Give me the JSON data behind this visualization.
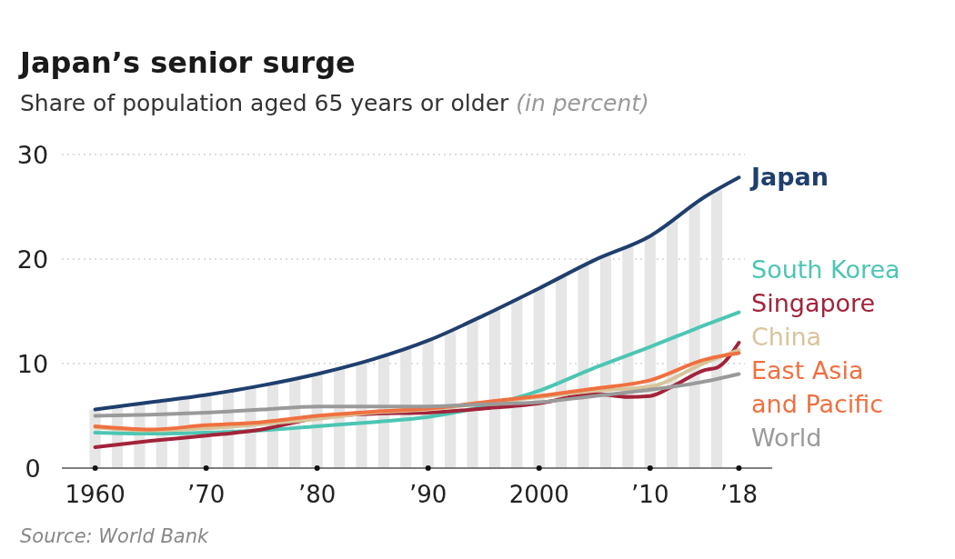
{
  "chart_data": {
    "type": "line",
    "title": "Japan’s senior surge",
    "subtitle": "Share of population aged 65 years or older (in percent)",
    "annotations": [
      "Source: World Bank"
    ],
    "xlim": [
      1957,
      2021
    ],
    "xticks": [
      {
        "value": 1960,
        "label": "1960"
      },
      {
        "value": 1970,
        "label": "’70"
      },
      {
        "value": 1980,
        "label": "’80"
      },
      {
        "value": 1990,
        "label": "’90"
      },
      {
        "value": 2000,
        "label": "2000"
      },
      {
        "value": 2010,
        "label": "’10"
      },
      {
        "value": 2018,
        "label": "’18"
      }
    ],
    "ylim": [
      0,
      30
    ],
    "yticks": [
      0,
      10,
      20,
      30
    ],
    "grid": "y",
    "legend": false,
    "series": [
      {
        "type": "bar",
        "color": "#e6e6e6",
        "x": [
          1960,
          1962,
          1964,
          1966,
          1968,
          1970,
          1972,
          1974,
          1976,
          1978,
          1980,
          1982,
          1984,
          1986,
          1988,
          1990,
          1992,
          1994,
          1996,
          1998,
          2000,
          2002,
          2004,
          2006,
          2008,
          2010,
          2012,
          2014,
          2016
        ],
        "values": [
          5.6,
          5.8,
          6.1,
          6.4,
          6.7,
          7.0,
          7.3,
          7.7,
          8.1,
          8.6,
          9.0,
          9.5,
          10.1,
          10.8,
          11.4,
          12.2,
          13.1,
          14.1,
          15.1,
          16.2,
          17.2,
          18.3,
          19.4,
          20.4,
          21.3,
          22.2,
          23.6,
          25.2,
          26.6
        ]
      },
      {
        "name": "Japan",
        "color": "#1f3f6e",
        "x": [
          1960,
          1965,
          1970,
          1975,
          1980,
          1985,
          1990,
          1995,
          2000,
          2005,
          2010,
          2015,
          2018
        ],
        "values": [
          5.6,
          6.3,
          7.0,
          7.9,
          9.0,
          10.4,
          12.2,
          14.6,
          17.2,
          19.9,
          22.2,
          26.0,
          27.8
        ]
      },
      {
        "name": "South Korea",
        "color": "#4cc6b4",
        "x": [
          1960,
          1965,
          1970,
          1975,
          1980,
          1985,
          1990,
          1995,
          2000,
          2005,
          2010,
          2015,
          2018
        ],
        "values": [
          3.4,
          3.3,
          3.4,
          3.6,
          4.0,
          4.4,
          4.9,
          5.9,
          7.4,
          9.6,
          11.6,
          13.7,
          14.9
        ]
      },
      {
        "name": "Singapore",
        "color": "#a3233a",
        "x": [
          1960,
          1965,
          1970,
          1975,
          1980,
          1985,
          1990,
          1995,
          2000,
          2005,
          2008,
          2010,
          2012,
          2015,
          2016,
          2018
        ],
        "values": [
          2.0,
          2.6,
          3.1,
          3.7,
          4.8,
          5.2,
          5.3,
          5.7,
          6.2,
          7.1,
          6.8,
          6.9,
          7.8,
          9.4,
          9.6,
          12.0
        ]
      },
      {
        "name": "China",
        "color": "#d8c49a",
        "x": [
          1960,
          1965,
          1970,
          1975,
          1980,
          1985,
          1990,
          1995,
          2000,
          2005,
          2010,
          2015,
          2018
        ],
        "values": [
          3.9,
          3.6,
          3.8,
          4.2,
          4.7,
          5.3,
          5.6,
          6.2,
          6.8,
          7.4,
          7.8,
          10.1,
          11.3
        ]
      },
      {
        "name": "East Asia and Pacific",
        "color": "#f07040",
        "x": [
          1960,
          1965,
          1970,
          1975,
          1980,
          1985,
          1990,
          1995,
          2000,
          2005,
          2010,
          2015,
          2018
        ],
        "values": [
          4.0,
          3.7,
          4.1,
          4.4,
          5.0,
          5.4,
          5.7,
          6.3,
          6.9,
          7.6,
          8.4,
          10.4,
          11.0
        ]
      },
      {
        "name": "World",
        "color": "#9a9a9a",
        "x": [
          1960,
          1965,
          1970,
          1975,
          1980,
          1985,
          1990,
          1995,
          2000,
          2005,
          2010,
          2015,
          2018
        ],
        "values": [
          5.0,
          5.1,
          5.3,
          5.6,
          5.9,
          5.9,
          5.9,
          6.1,
          6.3,
          6.9,
          7.5,
          8.3,
          9.0
        ]
      }
    ]
  }
}
